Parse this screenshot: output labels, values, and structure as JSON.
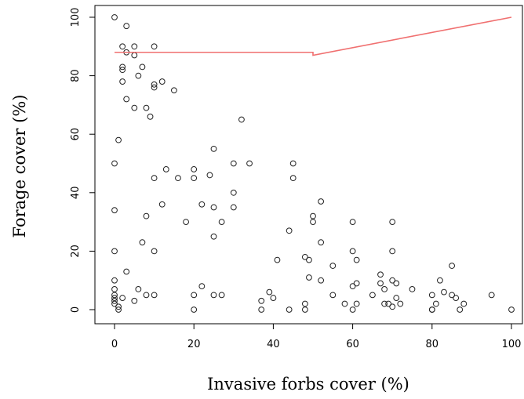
{
  "chart_data": {
    "type": "scatter",
    "title": "",
    "xlabel": "Invasive forbs cover (%)",
    "ylabel": "Forage cover (%)",
    "xlim": [
      -4,
      102
    ],
    "ylim": [
      -4,
      102
    ],
    "xticks": [
      0,
      20,
      40,
      60,
      80,
      100
    ],
    "yticks": [
      0,
      20,
      40,
      60,
      80,
      100
    ],
    "grid": false,
    "points_color": "#222222",
    "points": [
      [
        0,
        100
      ],
      [
        3,
        97
      ],
      [
        2,
        90
      ],
      [
        3,
        88
      ],
      [
        5,
        90
      ],
      [
        5,
        87
      ],
      [
        10,
        90
      ],
      [
        2,
        83
      ],
      [
        2,
        82
      ],
      [
        7,
        83
      ],
      [
        6,
        80
      ],
      [
        2,
        78
      ],
      [
        10,
        77
      ],
      [
        12,
        78
      ],
      [
        10,
        76
      ],
      [
        15,
        75
      ],
      [
        3,
        72
      ],
      [
        5,
        69
      ],
      [
        8,
        69
      ],
      [
        9,
        66
      ],
      [
        32,
        65
      ],
      [
        1,
        58
      ],
      [
        25,
        55
      ],
      [
        0,
        50
      ],
      [
        30,
        50
      ],
      [
        34,
        50
      ],
      [
        45,
        50
      ],
      [
        13,
        48
      ],
      [
        20,
        48
      ],
      [
        10,
        45
      ],
      [
        16,
        45
      ],
      [
        20,
        45
      ],
      [
        24,
        46
      ],
      [
        45,
        45
      ],
      [
        30,
        40
      ],
      [
        52,
        37
      ],
      [
        12,
        36
      ],
      [
        22,
        36
      ],
      [
        25,
        35
      ],
      [
        30,
        35
      ],
      [
        0,
        34
      ],
      [
        8,
        32
      ],
      [
        50,
        32
      ],
      [
        50,
        30
      ],
      [
        18,
        30
      ],
      [
        27,
        30
      ],
      [
        60,
        30
      ],
      [
        70,
        30
      ],
      [
        44,
        27
      ],
      [
        25,
        25
      ],
      [
        7,
        23
      ],
      [
        52,
        23
      ],
      [
        10,
        20
      ],
      [
        0,
        20
      ],
      [
        60,
        20
      ],
      [
        70,
        20
      ],
      [
        41,
        17
      ],
      [
        48,
        18
      ],
      [
        49,
        17
      ],
      [
        61,
        17
      ],
      [
        85,
        15
      ],
      [
        55,
        15
      ],
      [
        67,
        12
      ],
      [
        40,
        4
      ],
      [
        37,
        3
      ],
      [
        37,
        0
      ],
      [
        39,
        6
      ],
      [
        44,
        0
      ],
      [
        48,
        0
      ],
      [
        48,
        2
      ],
      [
        49,
        11
      ],
      [
        52,
        10
      ],
      [
        55,
        5
      ],
      [
        58,
        2
      ],
      [
        60,
        8
      ],
      [
        61,
        9
      ],
      [
        60,
        0
      ],
      [
        61,
        2
      ],
      [
        65,
        5
      ],
      [
        67,
        9
      ],
      [
        68,
        7
      ],
      [
        68,
        2
      ],
      [
        70,
        10
      ],
      [
        71,
        9
      ],
      [
        70,
        1
      ],
      [
        72,
        2
      ],
      [
        75,
        7
      ],
      [
        80,
        0
      ],
      [
        80,
        0
      ],
      [
        80,
        5
      ],
      [
        82,
        10
      ],
      [
        83,
        6
      ],
      [
        85,
        5
      ],
      [
        87,
        0
      ],
      [
        88,
        2
      ],
      [
        95,
        5
      ],
      [
        100,
        0
      ],
      [
        0,
        10
      ],
      [
        0,
        7
      ],
      [
        0,
        5
      ],
      [
        0,
        4
      ],
      [
        0,
        3
      ],
      [
        0,
        2
      ],
      [
        1,
        1
      ],
      [
        1,
        0
      ],
      [
        2,
        4
      ],
      [
        3,
        13
      ],
      [
        5,
        3
      ],
      [
        6,
        7
      ],
      [
        8,
        5
      ],
      [
        10,
        5
      ],
      [
        20,
        5
      ],
      [
        20,
        0
      ],
      [
        22,
        8
      ],
      [
        25,
        5
      ],
      [
        27,
        5
      ],
      [
        69,
        2
      ],
      [
        71,
        4
      ],
      [
        81,
        2
      ],
      [
        86,
        4
      ]
    ],
    "fit_line_color": "#f07070",
    "fit_line": [
      [
        0,
        88
      ],
      [
        50,
        88
      ],
      [
        50,
        87
      ],
      [
        100,
        100
      ]
    ]
  }
}
